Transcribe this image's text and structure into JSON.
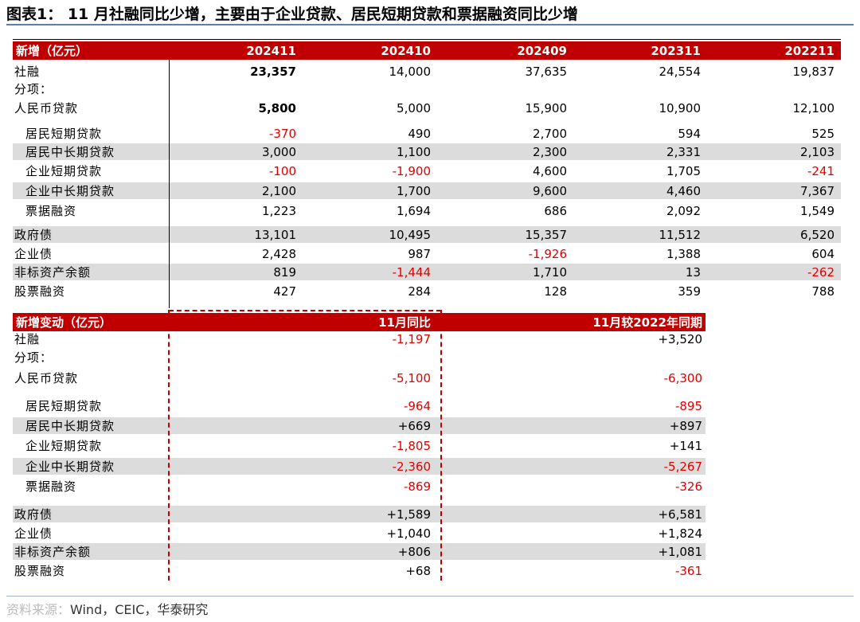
{
  "figure": {
    "title": "图表1：  11 月社融同比少增，主要由于企业贷款、居民短期贷款和票据融资同比少增",
    "source_visible": "资料来源：Wind，CEIC，华泰研究",
    "source_watermark": "资料来源：",
    "source_text": "Wind，CEIC，华泰研究"
  },
  "table1": {
    "header": [
      "新增（亿元）",
      "202411",
      "202410",
      "202409",
      "202311",
      "202211"
    ],
    "rows": [
      {
        "label": "社融",
        "values": [
          "23,357",
          "14,000",
          "37,635",
          "24,554",
          "19,837"
        ]
      },
      {
        "label": "分项：",
        "values": [
          "",
          "",
          "",
          "",
          ""
        ]
      },
      {
        "label": "人民币贷款",
        "values": [
          "5,800",
          "5,000",
          "15,900",
          "10,900",
          "12,100"
        ]
      },
      {
        "label": "居民短期贷款",
        "values": [
          "-370",
          "490",
          "2,700",
          "594",
          "525"
        ]
      },
      {
        "label": "居民中长期贷款",
        "values": [
          "3,000",
          "1,100",
          "2,300",
          "2,331",
          "2,103"
        ]
      },
      {
        "label": "企业短期贷款",
        "values": [
          "-100",
          "-1,900",
          "4,600",
          "1,705",
          "-241"
        ]
      },
      {
        "label": "企业中长期贷款",
        "values": [
          "2,100",
          "1,700",
          "9,600",
          "4,460",
          "7,367"
        ]
      },
      {
        "label": "票据融资",
        "values": [
          "1,223",
          "1,694",
          "686",
          "2,092",
          "1,549"
        ]
      },
      {
        "label": "政府债",
        "values": [
          "13,101",
          "10,495",
          "15,357",
          "11,512",
          "6,520"
        ]
      },
      {
        "label": "企业债",
        "values": [
          "2,428",
          "987",
          "-1,926",
          "1,388",
          "604"
        ]
      },
      {
        "label": "非标资产余额",
        "values": [
          "819",
          "-1,444",
          "1,710",
          "13",
          "-262"
        ]
      },
      {
        "label": "股票融资",
        "values": [
          "427",
          "284",
          "128",
          "359",
          "788"
        ]
      }
    ]
  },
  "table2": {
    "header": [
      "新增变动（亿元）",
      "11月同比",
      "11月较2022年同期"
    ],
    "rows": [
      {
        "label": "社融",
        "values": [
          "-1,197",
          "+3,520"
        ]
      },
      {
        "label": "分项：",
        "values": [
          "",
          ""
        ]
      },
      {
        "label": "人民币贷款",
        "values": [
          "-5,100",
          "-6,300"
        ]
      },
      {
        "label": "居民短期贷款",
        "values": [
          "-964",
          "-895"
        ]
      },
      {
        "label": "居民中长期贷款",
        "values": [
          "+669",
          "+897"
        ]
      },
      {
        "label": "企业短期贷款",
        "values": [
          "-1,805",
          "+141"
        ]
      },
      {
        "label": "企业中长期贷款",
        "values": [
          "-2,360",
          "-5,267"
        ]
      },
      {
        "label": "票据融资",
        "values": [
          "-869",
          "-326"
        ]
      },
      {
        "label": "政府债",
        "values": [
          "+1,589",
          "+6,581"
        ]
      },
      {
        "label": "企业债",
        "values": [
          "+1,040",
          "+1,824"
        ]
      },
      {
        "label": "非标资产余额",
        "values": [
          "+806",
          "+1,081"
        ]
      },
      {
        "label": "股票融资",
        "values": [
          "+68",
          "-361"
        ]
      }
    ]
  }
}
